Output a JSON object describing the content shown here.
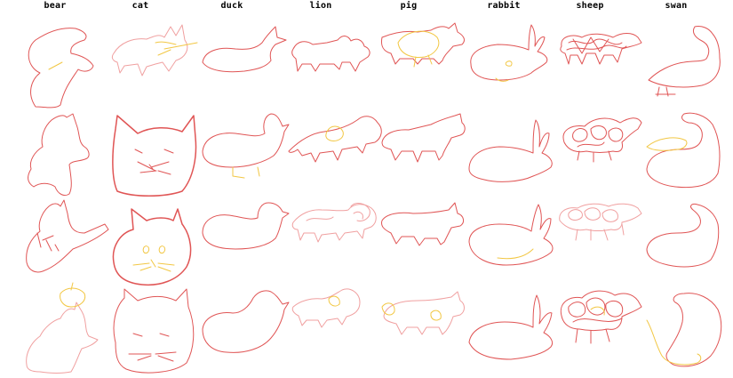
{
  "columns": [
    "bear",
    "cat",
    "duck",
    "lion",
    "pig",
    "rabbit",
    "sheep",
    "swan"
  ],
  "colors": {
    "main": "#e05555",
    "light": "#f0a0a0",
    "accent": "#f2c744"
  }
}
